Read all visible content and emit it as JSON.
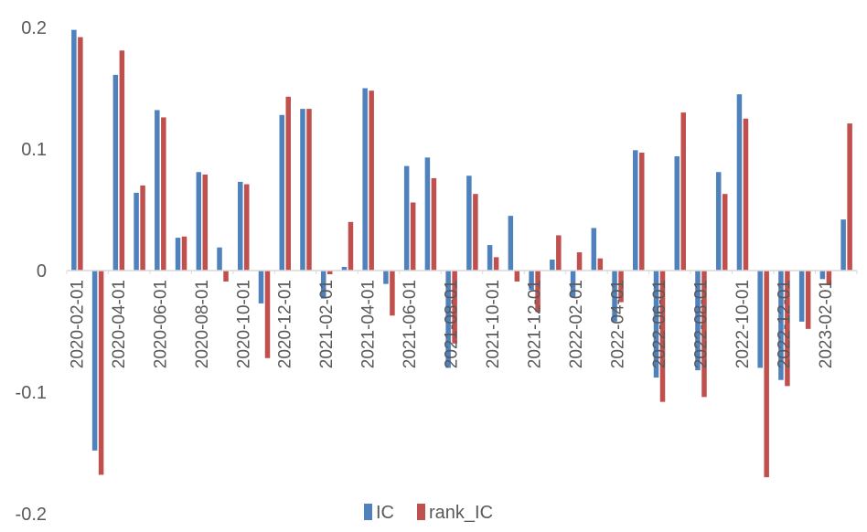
{
  "chart_data": {
    "type": "bar",
    "y_ticks": [
      "0.2",
      "0.1",
      "0",
      "-0.1",
      "-0.2"
    ],
    "ylim": [
      -0.2,
      0.2
    ],
    "grid": false,
    "legend_position": "bottom",
    "categories": [
      "2020-02-01",
      "2020-03-01",
      "2020-04-01",
      "2020-05-01",
      "2020-06-01",
      "2020-07-01",
      "2020-08-01",
      "2020-09-01",
      "2020-10-01",
      "2020-11-01",
      "2020-12-01",
      "2021-01-01",
      "2021-02-01",
      "2021-03-01",
      "2021-04-01",
      "2021-05-01",
      "2021-06-01",
      "2021-07-01",
      "2021-08-01",
      "2021-09-01",
      "2021-10-01",
      "2021-11-01",
      "2021-12-01",
      "2022-01-01",
      "2022-02-01",
      "2022-03-01",
      "2022-04-01",
      "2022-05-01",
      "2022-06-01",
      "2022-07-01",
      "2022-08-01",
      "2022-09-01",
      "2022-10-01",
      "2022-11-01",
      "2022-12-01",
      "2023-01-01",
      "2023-02-01",
      "2023-03-01"
    ],
    "tick_labels": [
      "2020-02-01",
      "2020-04-01",
      "2020-06-01",
      "2020-08-01",
      "2020-10-01",
      "2020-12-01",
      "2021-02-01",
      "2021-04-01",
      "2021-06-01",
      "2021-08-01",
      "2021-10-01",
      "2021-12-01",
      "2022-02-01",
      "2022-04-01",
      "2022-06-01",
      "2022-08-01",
      "2022-10-01",
      "2022-12-01",
      "2023-02-01"
    ],
    "series": [
      {
        "name": "IC",
        "color": "#4F81BD",
        "values": [
          0.198,
          -0.148,
          0.161,
          0.064,
          0.132,
          0.027,
          0.081,
          0.019,
          0.073,
          -0.027,
          0.128,
          0.133,
          -0.023,
          0.003,
          0.15,
          -0.011,
          0.086,
          0.093,
          -0.08,
          0.078,
          0.021,
          0.045,
          -0.016,
          0.009,
          -0.022,
          0.035,
          -0.042,
          0.099,
          -0.088,
          0.094,
          -0.082,
          0.081,
          0.145,
          -0.08,
          -0.09,
          -0.042,
          -0.007,
          0.042
        ]
      },
      {
        "name": "rank_IC",
        "color": "#C0504D",
        "values": [
          0.192,
          -0.168,
          0.181,
          0.07,
          0.126,
          0.028,
          0.079,
          -0.009,
          0.071,
          -0.072,
          0.143,
          0.133,
          -0.003,
          0.04,
          0.148,
          -0.037,
          0.056,
          0.076,
          -0.06,
          0.063,
          0.011,
          -0.009,
          -0.034,
          0.029,
          0.015,
          0.01,
          -0.026,
          0.097,
          -0.108,
          0.13,
          -0.104,
          0.063,
          0.125,
          -0.17,
          -0.095,
          -0.048,
          -0.012,
          0.121
        ]
      }
    ]
  }
}
